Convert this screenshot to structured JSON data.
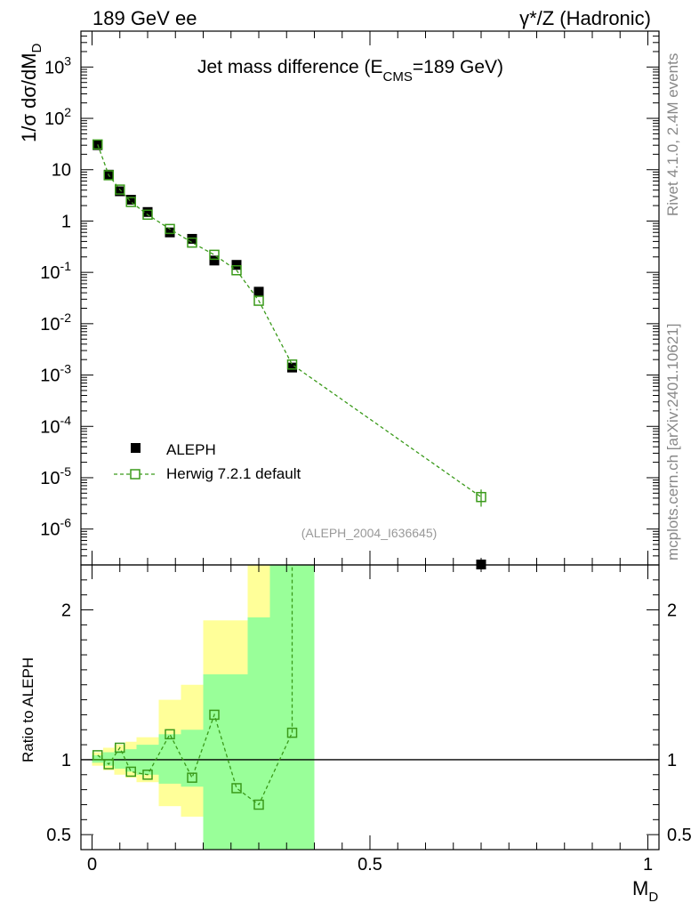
{
  "header": {
    "left": "189 GeV ee",
    "right": "γ*/Z (Hadronic)"
  },
  "side": {
    "rivet": "Rivet 4.1.0,  2.4M events",
    "mcplots": "mcplots.cern.ch [arXiv:2401.10621]"
  },
  "chart_data": {
    "type": "scatter",
    "title": "Jet mass difference (E_CMS=189 GeV)",
    "title_parts": {
      "main": "Jet mass difference (E",
      "sub": "CMS",
      "tail": "=189 GeV)"
    },
    "analysis_id": "(ALEPH_2004_I636645)",
    "xlabel": "M_D",
    "xlabel_parts": {
      "main": "M",
      "sub": "D"
    },
    "ylabel": "1/σ dσ/dM_D",
    "ylabel_parts": {
      "main": "1/σ  dσ/dM",
      "sub": "D"
    },
    "xlim": [
      -0.02,
      1.02
    ],
    "ylim": [
      2e-07,
      5000
    ],
    "xscale": "linear",
    "yscale": "log",
    "x_ticks": [
      0,
      0.5,
      1
    ],
    "x_tick_labels": [
      "0",
      "0.5",
      "1"
    ],
    "y_tick_labels": [
      {
        "mantissa": "10",
        "exp": "-6"
      },
      {
        "mantissa": "10",
        "exp": "-5"
      },
      {
        "mantissa": "10",
        "exp": "-4"
      },
      {
        "mantissa": "10",
        "exp": "-3"
      },
      {
        "mantissa": "10",
        "exp": "-2"
      },
      {
        "mantissa": "10",
        "exp": "-1"
      },
      {
        "mantissa": "1",
        "exp": ""
      },
      {
        "mantissa": "10",
        "exp": ""
      },
      {
        "mantissa": "10",
        "exp": "2"
      },
      {
        "mantissa": "10",
        "exp": "3"
      }
    ],
    "legend": [
      {
        "name": "ALEPH",
        "marker": "filled-square",
        "color": "#000000"
      },
      {
        "name": "Herwig 7.2.1 default",
        "marker": "open-square-dashed",
        "color": "#3a9a1a"
      }
    ],
    "series": [
      {
        "name": "ALEPH",
        "x": [
          0.01,
          0.03,
          0.05,
          0.07,
          0.1,
          0.14,
          0.18,
          0.22,
          0.26,
          0.3,
          0.36,
          0.7
        ],
        "values": [
          30,
          8.0,
          3.8,
          2.6,
          1.5,
          0.6,
          0.45,
          0.17,
          0.14,
          0.042,
          0.0014,
          2e-07
        ]
      },
      {
        "name": "Herwig 7.2.1 default",
        "x": [
          0.01,
          0.03,
          0.05,
          0.07,
          0.1,
          0.14,
          0.18,
          0.22,
          0.26,
          0.3,
          0.36,
          0.7
        ],
        "values": [
          31,
          7.8,
          4.1,
          2.35,
          1.33,
          0.7,
          0.38,
          0.22,
          0.11,
          0.028,
          0.0016,
          4.2e-06
        ]
      }
    ],
    "ratio": {
      "ylabel": "Ratio to ALEPH",
      "ylim": [
        0.4,
        2.3
      ],
      "yticks": [
        0.5,
        1,
        2
      ],
      "ytick_labels": [
        "0.5",
        "1",
        "2"
      ],
      "x": [
        0.01,
        0.03,
        0.05,
        0.07,
        0.1,
        0.14,
        0.18,
        0.22,
        0.26,
        0.3,
        0.36
      ],
      "values": [
        1.03,
        0.97,
        1.08,
        0.92,
        0.9,
        1.17,
        0.88,
        1.3,
        0.81,
        0.7,
        1.18
      ],
      "upper_arrow_x": 0.36,
      "bands": [
        {
          "x0": 0.0,
          "x1": 0.02,
          "g": [
            0.98,
            1.03
          ],
          "y": [
            0.96,
            1.05
          ]
        },
        {
          "x0": 0.02,
          "x1": 0.04,
          "g": [
            0.96,
            1.05
          ],
          "y": [
            0.93,
            1.08
          ]
        },
        {
          "x0": 0.04,
          "x1": 0.06,
          "g": [
            0.94,
            1.06
          ],
          "y": [
            0.9,
            1.1
          ]
        },
        {
          "x0": 0.06,
          "x1": 0.08,
          "g": [
            0.92,
            1.07
          ],
          "y": [
            0.88,
            1.12
          ]
        },
        {
          "x0": 0.08,
          "x1": 0.12,
          "g": [
            0.9,
            1.1
          ],
          "y": [
            0.85,
            1.15
          ]
        },
        {
          "x0": 0.12,
          "x1": 0.16,
          "g": [
            0.84,
            1.17
          ],
          "y": [
            0.69,
            1.4
          ]
        },
        {
          "x0": 0.16,
          "x1": 0.2,
          "g": [
            0.82,
            1.2
          ],
          "y": [
            0.62,
            1.5
          ]
        },
        {
          "x0": 0.2,
          "x1": 0.24,
          "g": [
            0.4,
            1.57
          ],
          "y": [
            0.4,
            1.93
          ]
        },
        {
          "x0": 0.24,
          "x1": 0.28,
          "g": [
            0.4,
            1.57
          ],
          "y": [
            0.4,
            1.93
          ]
        },
        {
          "x0": 0.28,
          "x1": 0.32,
          "g": [
            0.4,
            1.95
          ],
          "y": [
            0.4,
            2.3
          ]
        },
        {
          "x0": 0.32,
          "x1": 0.4,
          "g": [
            0.4,
            2.3
          ],
          "y": [
            0.4,
            2.3
          ]
        }
      ]
    },
    "colors": {
      "band_green": "#99ff99",
      "band_yellow": "#ffff99",
      "mc": "#3a9a1a",
      "data": "#000000"
    }
  }
}
